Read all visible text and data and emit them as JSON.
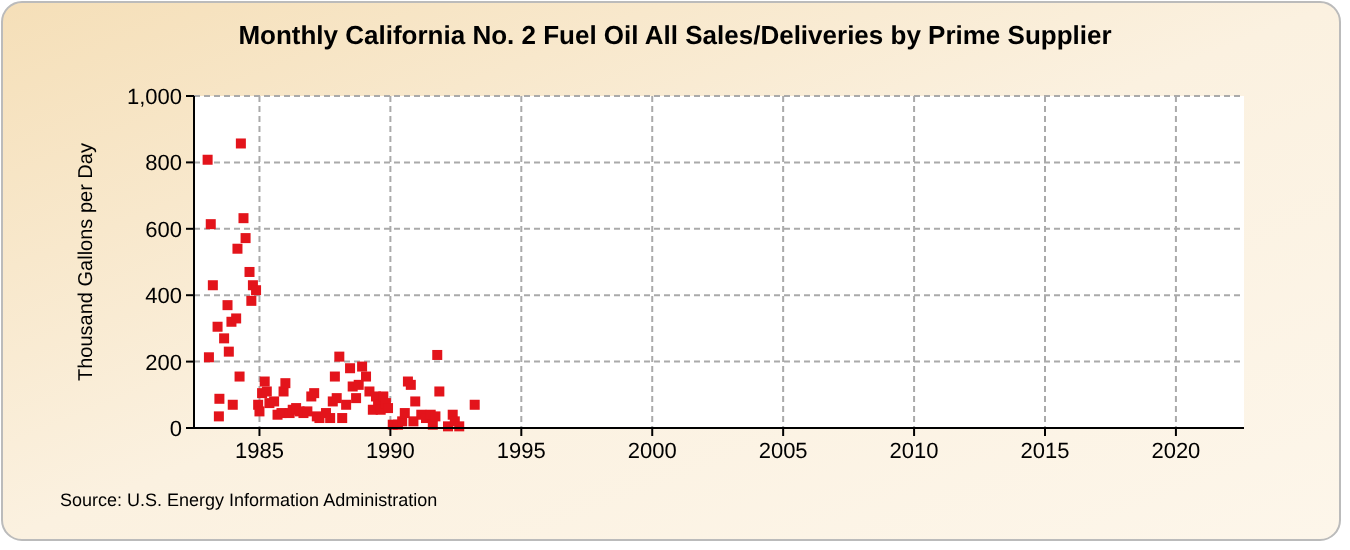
{
  "chart_data": {
    "type": "scatter",
    "title": "Monthly California No. 2 Fuel Oil All Sales/Deliveries by Prime Supplier",
    "ylabel": "Thousand Gallons per Day",
    "annotations": [
      "Source: U.S. Energy Information Administration"
    ],
    "xlim": [
      1982.5,
      2022.6
    ],
    "xticks": [
      1985,
      1990,
      1995,
      2000,
      2005,
      2010,
      2015,
      2020
    ],
    "ylim": [
      0,
      1000
    ],
    "yticks": [
      0,
      200,
      400,
      600,
      800,
      {
        "value": 1000,
        "label": "1,000"
      }
    ],
    "grid": true,
    "marker": "square",
    "series": [
      {
        "color": "#e3141b",
        "x": [
          1983.02,
          1983.07,
          1983.14,
          1983.22,
          1983.4,
          1983.45,
          1983.47,
          1983.65,
          1983.78,
          1983.83,
          1983.93,
          1983.98,
          1984.11,
          1984.16,
          1984.24,
          1984.29,
          1984.39,
          1984.47,
          1984.62,
          1984.69,
          1984.75,
          1984.87,
          1984.95,
          1985.0,
          1985.1,
          1985.2,
          1985.28,
          1985.38,
          1985.56,
          1985.69,
          1985.84,
          1985.92,
          1985.99,
          1986.15,
          1986.27,
          1986.4,
          1986.53,
          1986.68,
          1986.83,
          1986.98,
          1987.09,
          1987.19,
          1987.29,
          1987.54,
          1987.7,
          1987.8,
          1987.88,
          1987.95,
          1988.05,
          1988.16,
          1988.31,
          1988.46,
          1988.56,
          1988.69,
          1988.79,
          1988.92,
          1989.07,
          1989.2,
          1989.33,
          1989.45,
          1989.53,
          1989.63,
          1989.73,
          1989.83,
          1989.91,
          1990.09,
          1990.29,
          1990.45,
          1990.55,
          1990.67,
          1990.78,
          1990.88,
          1990.95,
          1991.18,
          1991.36,
          1991.54,
          1991.62,
          1991.72,
          1991.79,
          1991.87,
          1992.2,
          1992.38,
          1992.46,
          1992.63,
          1993.22
        ],
        "values": [
          808,
          213,
          614,
          430,
          305,
          35,
          88,
          270,
          370,
          230,
          320,
          70,
          330,
          540,
          155,
          857,
          632,
          572,
          470,
          383,
          430,
          415,
          70,
          50,
          105,
          140,
          110,
          75,
          80,
          40,
          45,
          110,
          135,
          45,
          55,
          60,
          50,
          45,
          50,
          95,
          105,
          35,
          30,
          45,
          30,
          80,
          155,
          90,
          215,
          30,
          70,
          180,
          125,
          90,
          130,
          185,
          155,
          110,
          55,
          95,
          70,
          55,
          95,
          75,
          60,
          10,
          10,
          20,
          45,
          140,
          130,
          20,
          80,
          40,
          30,
          40,
          10,
          35,
          220,
          110,
          5,
          40,
          20,
          5,
          70
        ]
      }
    ]
  }
}
